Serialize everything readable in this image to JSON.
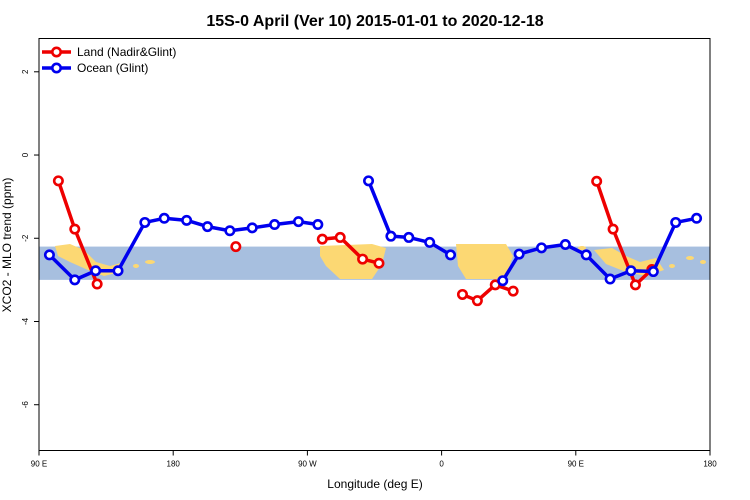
{
  "chart_data": {
    "type": "line",
    "title": "15S-0 April (Ver 10)   2015-01-01 to 2020-12-18",
    "xlabel": "Longitude (deg E)",
    "ylabel": "XCO2 - MLO trend (ppm)",
    "x_ticks": [
      {
        "value": 90,
        "label": "90 E"
      },
      {
        "value": 180,
        "label": "180"
      },
      {
        "value": 270,
        "label": "90 W"
      },
      {
        "value": 360,
        "label": "0"
      },
      {
        "value": 450,
        "label": "90 E"
      },
      {
        "value": 540,
        "label": "180"
      }
    ],
    "y_ticks": [
      {
        "value": 2,
        "label": "2"
      },
      {
        "value": 0,
        "label": "0"
      },
      {
        "value": -2,
        "label": "-2"
      },
      {
        "value": -4,
        "label": "-4"
      },
      {
        "value": -6,
        "label": "-6"
      }
    ],
    "xlim": [
      90,
      540
    ],
    "ylim": [
      -7.1,
      2.8
    ],
    "map_band": {
      "y_top": -2.2,
      "y_bottom": -3.0,
      "ocean_color": "#a7bfdf",
      "land_color": "#fcd873"
    },
    "legend": {
      "position": "top-left"
    },
    "series": [
      {
        "name": "Land (Nadir&Glint)",
        "color": "#ee0000",
        "segments": [
          [
            [
              103,
              -0.62
            ],
            [
              114,
              -1.78
            ],
            [
              129,
              -3.1
            ]
          ],
          [
            [
              222,
              -2.2
            ]
          ],
          [
            [
              280,
              -2.02
            ],
            [
              292,
              -1.98
            ],
            [
              307,
              -2.5
            ],
            [
              318,
              -2.6
            ]
          ],
          [
            [
              374,
              -3.35
            ],
            [
              384,
              -3.5
            ],
            [
              396,
              -3.12
            ],
            [
              408,
              -3.27
            ]
          ],
          [
            [
              464,
              -0.63
            ],
            [
              475,
              -1.78
            ],
            [
              490,
              -3.12
            ],
            [
              501,
              -2.75
            ]
          ]
        ]
      },
      {
        "name": "Ocean (Glint)",
        "color": "#0000ee",
        "segments": [
          [
            [
              97,
              -2.4
            ],
            [
              114,
              -3.0
            ],
            [
              128,
              -2.78
            ],
            [
              143,
              -2.78
            ],
            [
              161,
              -1.62
            ],
            [
              174,
              -1.52
            ],
            [
              189,
              -1.57
            ],
            [
              203,
              -1.72
            ],
            [
              218,
              -1.82
            ],
            [
              233,
              -1.75
            ],
            [
              248,
              -1.67
            ],
            [
              264,
              -1.6
            ],
            [
              277,
              -1.67
            ]
          ],
          [
            [
              311,
              -0.62
            ],
            [
              326,
              -1.95
            ],
            [
              338,
              -1.98
            ],
            [
              352,
              -2.1
            ],
            [
              366,
              -2.4
            ]
          ],
          [
            [
              401,
              -3.02
            ],
            [
              412,
              -2.38
            ],
            [
              427,
              -2.23
            ],
            [
              443,
              -2.15
            ],
            [
              457,
              -2.4
            ],
            [
              473,
              -2.98
            ],
            [
              487,
              -2.78
            ],
            [
              502,
              -2.8
            ],
            [
              517,
              -1.62
            ],
            [
              531,
              -1.52
            ]
          ]
        ]
      }
    ]
  }
}
